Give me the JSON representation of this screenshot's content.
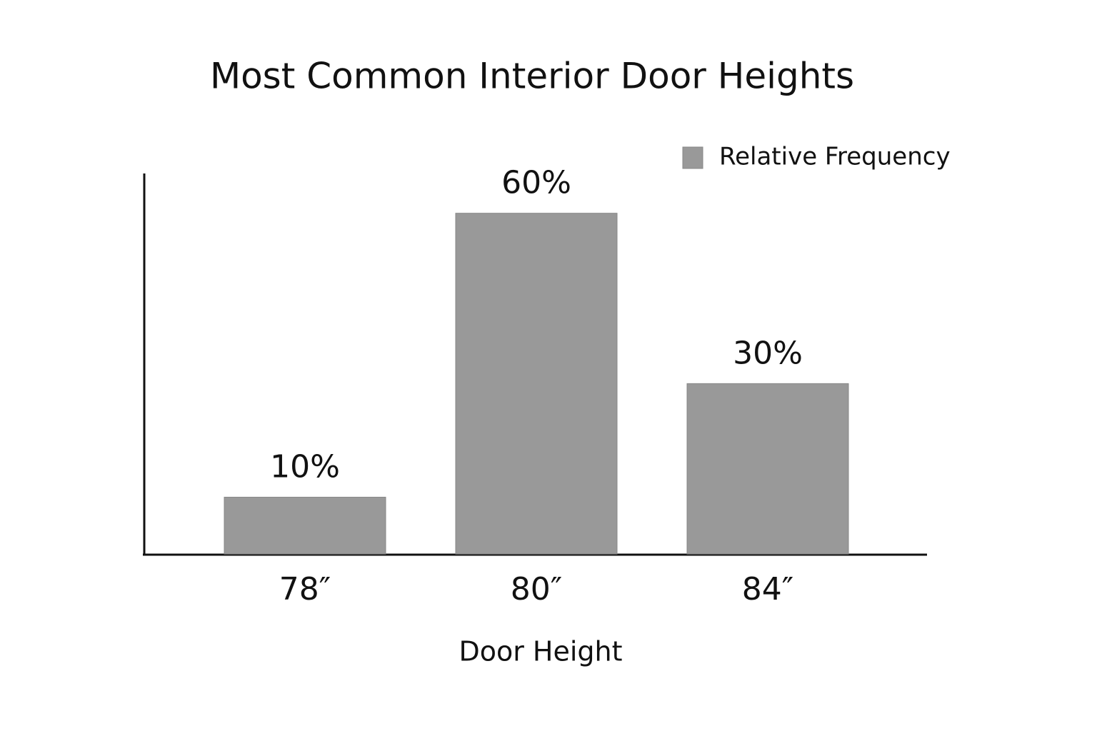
{
  "chart_data": {
    "type": "bar",
    "title": "Most Common Interior Door Heights",
    "x_label": "Door Height",
    "categories": [
      "78″",
      "80″",
      "84″"
    ],
    "series": [
      {
        "name": "Relative Frequency",
        "color": "#999999",
        "values": [
          10,
          60,
          30
        ],
        "value_labels": [
          "10%",
          "60%",
          "30%"
        ]
      }
    ],
    "ylim": [
      0,
      67
    ],
    "legend": "upper right"
  }
}
